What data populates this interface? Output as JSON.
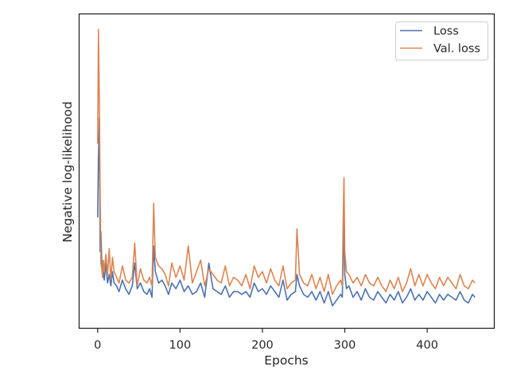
{
  "chart_data": {
    "type": "line",
    "title": "",
    "xlabel": "Epochs",
    "ylabel": "Negative log-likelihood",
    "xlim": [
      -22,
      481
    ],
    "ylim": [
      0,
      1
    ],
    "xticks": [
      0,
      100,
      200,
      300,
      400
    ],
    "ytick_labels_shown": false,
    "grid": false,
    "legend_position": "upper right",
    "series": [
      {
        "name": "Loss",
        "color": "#4c72b0",
        "x": [
          0,
          1,
          2,
          3,
          4,
          5,
          6,
          7,
          8,
          10,
          12,
          14,
          16,
          18,
          20,
          23,
          26,
          30,
          34,
          38,
          42,
          45,
          48,
          52,
          56,
          60,
          63,
          66,
          68,
          70,
          74,
          78,
          82,
          86,
          90,
          95,
          100,
          105,
          110,
          115,
          120,
          125,
          130,
          135,
          140,
          145,
          150,
          155,
          160,
          165,
          170,
          175,
          180,
          185,
          190,
          195,
          200,
          205,
          210,
          215,
          220,
          225,
          230,
          235,
          240,
          242,
          245,
          250,
          255,
          260,
          265,
          270,
          275,
          280,
          285,
          290,
          295,
          297,
          298,
          299,
          300,
          302,
          305,
          310,
          315,
          320,
          325,
          330,
          335,
          340,
          345,
          350,
          355,
          360,
          365,
          370,
          375,
          380,
          385,
          390,
          395,
          400,
          405,
          410,
          415,
          420,
          425,
          430,
          435,
          440,
          445,
          450,
          455,
          458
        ],
        "values": [
          0.34,
          0.55,
          0.69,
          0.22,
          0.29,
          0.18,
          0.13,
          0.15,
          0.12,
          0.18,
          0.11,
          0.14,
          0.1,
          0.15,
          0.11,
          0.1,
          0.08,
          0.12,
          0.09,
          0.07,
          0.1,
          0.18,
          0.09,
          0.11,
          0.08,
          0.07,
          0.09,
          0.06,
          0.24,
          0.15,
          0.11,
          0.12,
          0.1,
          0.07,
          0.11,
          0.09,
          0.12,
          0.08,
          0.1,
          0.07,
          0.08,
          0.11,
          0.06,
          0.18,
          0.09,
          0.08,
          0.07,
          0.1,
          0.06,
          0.08,
          0.08,
          0.07,
          0.08,
          0.06,
          0.11,
          0.08,
          0.09,
          0.07,
          0.1,
          0.08,
          0.06,
          0.12,
          0.05,
          0.07,
          0.08,
          0.14,
          0.1,
          0.07,
          0.06,
          0.08,
          0.05,
          0.08,
          0.04,
          0.08,
          0.03,
          0.05,
          0.07,
          0.06,
          0.2,
          0.36,
          0.14,
          0.09,
          0.1,
          0.06,
          0.08,
          0.05,
          0.09,
          0.06,
          0.05,
          0.08,
          0.06,
          0.04,
          0.07,
          0.05,
          0.08,
          0.04,
          0.06,
          0.09,
          0.05,
          0.07,
          0.05,
          0.08,
          0.06,
          0.04,
          0.07,
          0.05,
          0.07,
          0.06,
          0.05,
          0.08,
          0.05,
          0.04,
          0.07,
          0.06
        ]
      },
      {
        "name": "Val. loss",
        "color": "#dd8452",
        "x": [
          0,
          1,
          2,
          3,
          4,
          5,
          6,
          7,
          8,
          10,
          12,
          14,
          16,
          18,
          20,
          23,
          26,
          30,
          34,
          38,
          42,
          45,
          48,
          52,
          56,
          60,
          63,
          66,
          68,
          70,
          74,
          78,
          82,
          86,
          90,
          95,
          100,
          105,
          110,
          115,
          120,
          125,
          130,
          135,
          140,
          145,
          150,
          155,
          160,
          165,
          170,
          175,
          180,
          185,
          190,
          195,
          200,
          205,
          210,
          215,
          220,
          225,
          230,
          235,
          240,
          242,
          245,
          250,
          255,
          260,
          265,
          270,
          275,
          280,
          285,
          290,
          295,
          297,
          298,
          299,
          300,
          302,
          305,
          310,
          315,
          320,
          325,
          330,
          335,
          340,
          345,
          350,
          355,
          360,
          365,
          370,
          375,
          380,
          385,
          390,
          395,
          400,
          405,
          410,
          415,
          420,
          425,
          430,
          435,
          440,
          445,
          450,
          455,
          458
        ],
        "values": [
          0.6,
          1.0,
          0.76,
          0.43,
          0.18,
          0.16,
          0.13,
          0.19,
          0.15,
          0.21,
          0.14,
          0.23,
          0.12,
          0.2,
          0.15,
          0.13,
          0.11,
          0.17,
          0.12,
          0.11,
          0.13,
          0.25,
          0.1,
          0.16,
          0.12,
          0.11,
          0.13,
          0.1,
          0.39,
          0.2,
          0.17,
          0.16,
          0.14,
          0.1,
          0.18,
          0.13,
          0.17,
          0.12,
          0.24,
          0.11,
          0.15,
          0.19,
          0.1,
          0.16,
          0.14,
          0.12,
          0.11,
          0.17,
          0.1,
          0.13,
          0.12,
          0.1,
          0.14,
          0.09,
          0.17,
          0.13,
          0.15,
          0.11,
          0.16,
          0.12,
          0.1,
          0.17,
          0.09,
          0.11,
          0.12,
          0.3,
          0.14,
          0.11,
          0.1,
          0.14,
          0.09,
          0.13,
          0.08,
          0.14,
          0.07,
          0.1,
          0.12,
          0.1,
          0.33,
          0.48,
          0.22,
          0.15,
          0.14,
          0.11,
          0.13,
          0.1,
          0.14,
          0.11,
          0.1,
          0.13,
          0.1,
          0.08,
          0.12,
          0.09,
          0.13,
          0.08,
          0.11,
          0.16,
          0.1,
          0.14,
          0.1,
          0.14,
          0.11,
          0.09,
          0.13,
          0.1,
          0.13,
          0.11,
          0.09,
          0.14,
          0.1,
          0.09,
          0.12,
          0.11
        ]
      }
    ]
  }
}
